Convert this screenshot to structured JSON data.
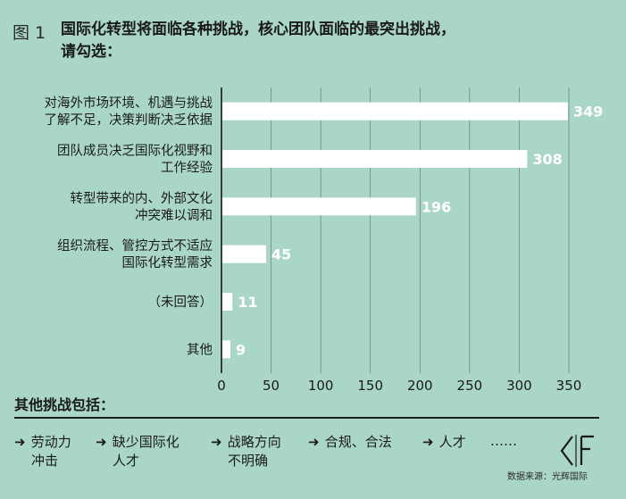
{
  "figure_label": "图 1",
  "chart_data": {
    "type": "bar",
    "orientation": "horizontal",
    "title_lines": [
      "国际化转型将面临各种挑战，核心团队面临的最突出挑战，",
      "请勾选："
    ],
    "categories": [
      [
        "对海外市场环境、机遇与挑战",
        "了解不足，决策判断决乏依据"
      ],
      [
        "团队成员决乏国际化视野和",
        "工作经验"
      ],
      [
        "转型带来的内、外部文化",
        "冲突难以调和"
      ],
      [
        "组织流程、管控方式不适应",
        "国际化转型需求"
      ],
      [
        "（未回答）"
      ],
      [
        "其他"
      ]
    ],
    "values": [
      349,
      308,
      196,
      45,
      11,
      9
    ],
    "value_labels": [
      "349",
      "308",
      "196",
      "45",
      "11",
      "9"
    ],
    "xlim": [
      0,
      350
    ],
    "x_ticks": [
      "0",
      "50",
      "100",
      "150",
      "200",
      "250",
      "300",
      "350"
    ],
    "grid": true,
    "bar_color": "#ffffff",
    "value_label_color": "#ffffff",
    "grid_color": "#1a1a1a"
  },
  "others": {
    "title": "其他挑战包括：",
    "items": [
      {
        "lines": [
          "劳动力",
          "冲击"
        ]
      },
      {
        "lines": [
          "缺少国际化",
          "人才"
        ]
      },
      {
        "lines": [
          "战略方向",
          "不明确"
        ]
      },
      {
        "lines": [
          "合规、合法"
        ]
      },
      {
        "lines": [
          "人才"
        ]
      }
    ],
    "ellipsis": "……",
    "arrow_glyph": "➜"
  },
  "source": "数据来源：光辉国际"
}
